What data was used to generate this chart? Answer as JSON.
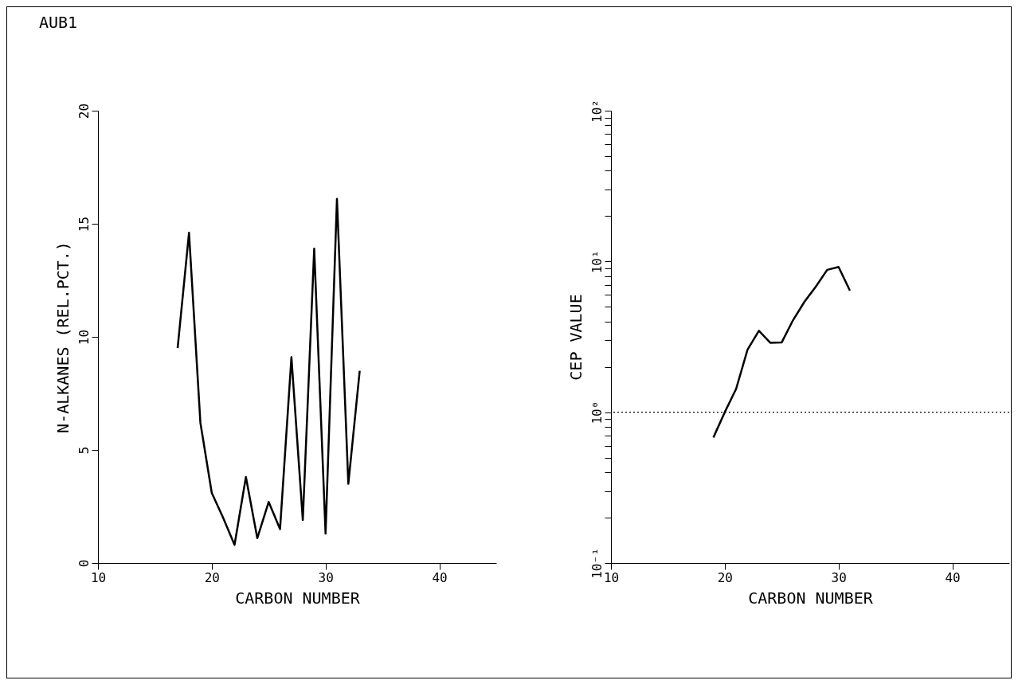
{
  "chart_data": [
    {
      "type": "line",
      "title": "AUB1",
      "xlabel": "CARBON NUMBER",
      "ylabel": "N-ALKANES (REL.PCT.)",
      "x": [
        17,
        18,
        19,
        20,
        21,
        22,
        23,
        24,
        25,
        26,
        27,
        28,
        29,
        30,
        31,
        32,
        33
      ],
      "series": [
        {
          "color": "#000000",
          "values": [
            9.5,
            14.6,
            6.2,
            3.1,
            2.0,
            0.8,
            3.8,
            1.1,
            2.7,
            1.5,
            9.1,
            1.9,
            13.9,
            1.3,
            16.1,
            3.5,
            8.5
          ]
        }
      ],
      "xlim": [
        10,
        45
      ],
      "xticks": [
        10,
        20,
        30,
        40
      ],
      "ylim": [
        0,
        20
      ],
      "yticks": [
        0,
        5,
        10,
        15,
        20
      ],
      "grid": false,
      "legend": false
    },
    {
      "type": "line",
      "xlabel": "CARBON NUMBER",
      "ylabel": "CEP VALUE",
      "x": [
        19,
        20,
        21,
        22,
        23,
        24,
        25,
        26,
        27,
        28,
        29,
        30,
        31
      ],
      "series": [
        {
          "color": "#000000",
          "values": [
            0.68,
            1.0,
            1.43,
            2.6,
            3.47,
            2.89,
            2.9,
            4.08,
            5.4,
            6.8,
            8.8,
            9.2,
            6.4
          ]
        }
      ],
      "xlim": [
        10,
        45
      ],
      "xticks": [
        10,
        20,
        30,
        40
      ],
      "ylim": [
        0.1,
        100
      ],
      "log": "y",
      "yticks": [
        {
          "value": 0.1,
          "label": "10⁻¹"
        },
        {
          "value": 0.2,
          "label": null
        },
        {
          "value": 0.3,
          "label": null
        },
        {
          "value": 0.4,
          "label": null
        },
        {
          "value": 0.5,
          "label": null
        },
        {
          "value": 0.6,
          "label": null
        },
        {
          "value": 0.7,
          "label": null
        },
        {
          "value": 0.8,
          "label": null
        },
        {
          "value": 0.9,
          "label": null
        },
        {
          "value": 1,
          "label": "10⁰"
        },
        {
          "value": 2,
          "label": null
        },
        {
          "value": 3,
          "label": null
        },
        {
          "value": 4,
          "label": null
        },
        {
          "value": 5,
          "label": null
        },
        {
          "value": 6,
          "label": null
        },
        {
          "value": 7,
          "label": null
        },
        {
          "value": 8,
          "label": null
        },
        {
          "value": 9,
          "label": null
        },
        {
          "value": 10,
          "label": "10¹"
        },
        {
          "value": 20,
          "label": null
        },
        {
          "value": 30,
          "label": null
        },
        {
          "value": 40,
          "label": null
        },
        {
          "value": 50,
          "label": null
        },
        {
          "value": 60,
          "label": null
        },
        {
          "value": 70,
          "label": null
        },
        {
          "value": 80,
          "label": null
        },
        {
          "value": 90,
          "label": null
        },
        {
          "value": 100,
          "label": "10²"
        }
      ],
      "ref_lines": [
        {
          "axis": "y",
          "value": 1,
          "line_style": "dotted"
        }
      ],
      "grid": false,
      "legend": false
    }
  ]
}
